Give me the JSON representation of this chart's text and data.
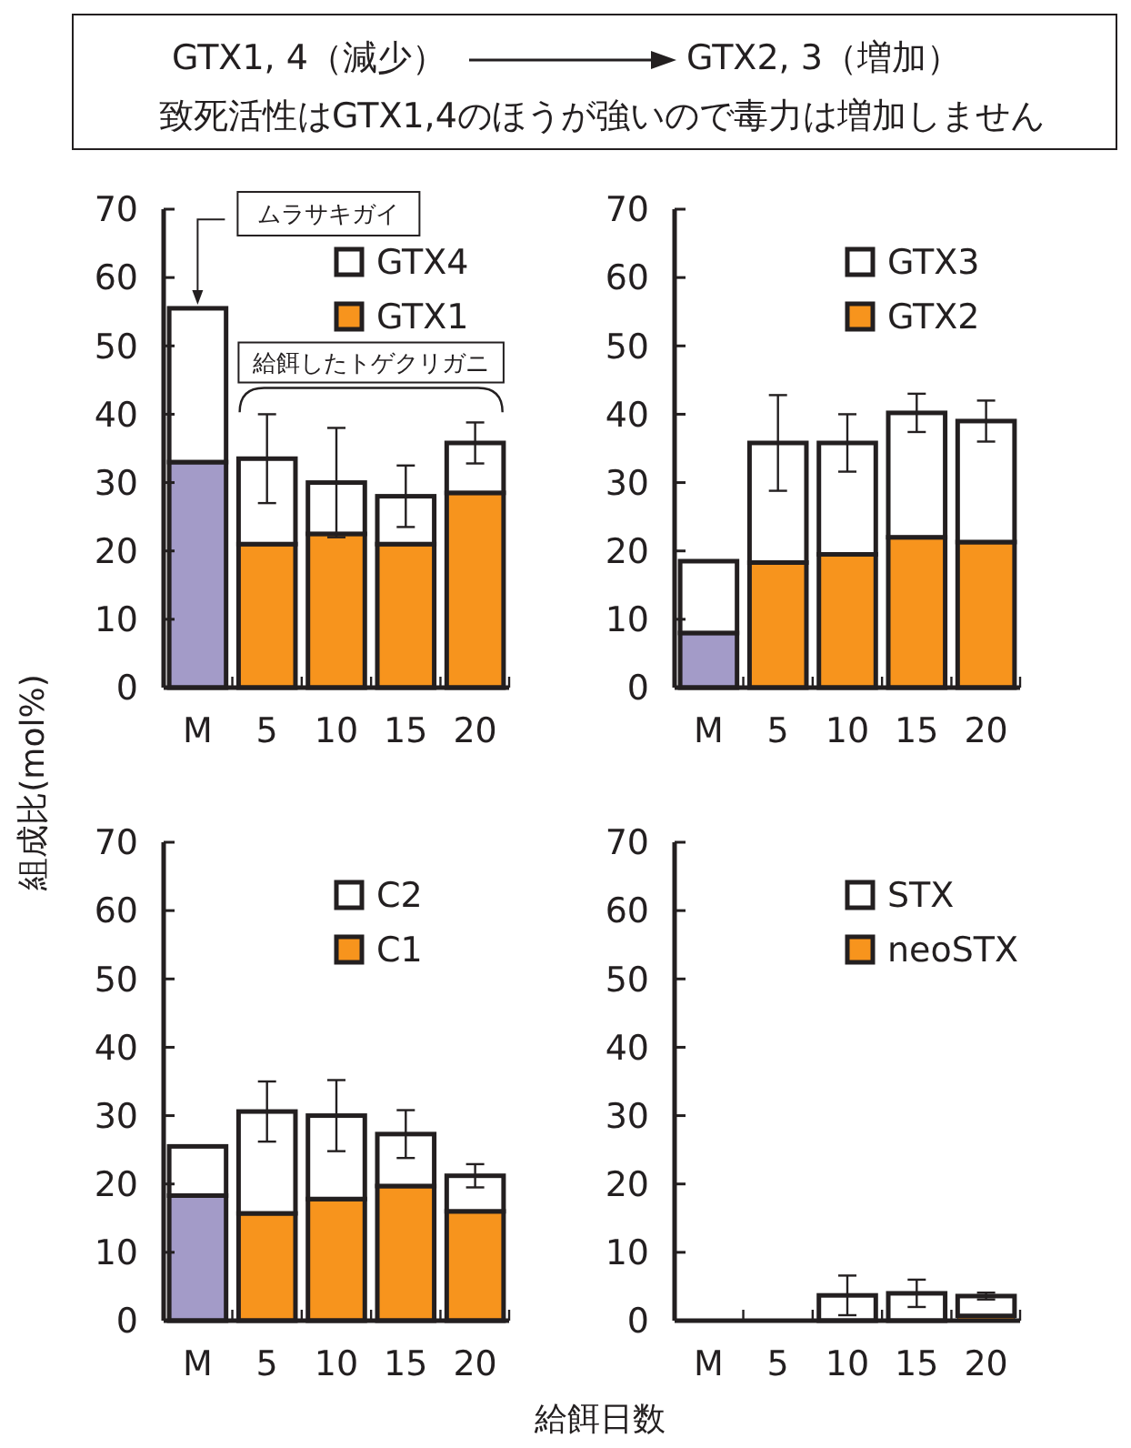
{
  "chart_data": [
    {
      "type": "bar",
      "stacked": true,
      "title": "致死活性はGTX1,4のほうが強いので毒力は増加しません",
      "ylabel": "組成比(mol%)",
      "annotations": [
        "GTX1, 4（減少）",
        "GTX2, 3（増加）",
        "給餌したトゲクリガニ",
        "ムラサキガイ"
      ],
      "categories": [
        "M",
        "5",
        "10",
        "15",
        "20"
      ],
      "ylim": [
        0,
        70
      ],
      "yticks": [
        0,
        10,
        20,
        30,
        40,
        50,
        60,
        70
      ],
      "legend": "top right",
      "series": [
        {
          "name": "GTX1",
          "color": "#f7941d",
          "colors": [
            "#a39bc8",
            "#f7941d",
            "#f7941d",
            "#f7941d",
            "#f7941d"
          ],
          "values": [
            33,
            21,
            22.5,
            21,
            28.5
          ]
        },
        {
          "name": "GTX4",
          "color": "#ffffff",
          "values": [
            22.5,
            12.5,
            7.5,
            7,
            7.3
          ],
          "errors": [
            null,
            6.5,
            8,
            4.5,
            3
          ]
        }
      ]
    },
    {
      "type": "bar",
      "stacked": true,
      "categories": [
        "M",
        "5",
        "10",
        "15",
        "20"
      ],
      "ylim": [
        0,
        70
      ],
      "yticks": [
        0,
        10,
        20,
        30,
        40,
        50,
        60,
        70
      ],
      "legend": "top right",
      "series": [
        {
          "name": "GTX2",
          "color": "#f7941d",
          "colors": [
            "#a39bc8",
            "#f7941d",
            "#f7941d",
            "#f7941d",
            "#f7941d"
          ],
          "values": [
            8,
            18.3,
            19.5,
            22,
            21.3
          ]
        },
        {
          "name": "GTX3",
          "color": "#ffffff",
          "values": [
            10.5,
            17.5,
            16.3,
            18.2,
            17.7
          ],
          "errors": [
            null,
            7,
            4.2,
            2.8,
            3
          ]
        }
      ]
    },
    {
      "type": "bar",
      "stacked": true,
      "xlabel": "給餌日数",
      "categories": [
        "M",
        "5",
        "10",
        "15",
        "20"
      ],
      "ylim": [
        0,
        70
      ],
      "yticks": [
        0,
        10,
        20,
        30,
        40,
        50,
        60,
        70
      ],
      "legend": "top right",
      "series": [
        {
          "name": "C1",
          "color": "#f7941d",
          "colors": [
            "#a39bc8",
            "#f7941d",
            "#f7941d",
            "#f7941d",
            "#f7941d"
          ],
          "values": [
            18.3,
            15.7,
            17.8,
            19.7,
            16
          ]
        },
        {
          "name": "C2",
          "color": "#ffffff",
          "values": [
            7.2,
            14.9,
            12.2,
            7.6,
            5.2
          ],
          "errors": [
            null,
            4.4,
            5.2,
            3.5,
            1.7
          ]
        }
      ]
    },
    {
      "type": "bar",
      "stacked": true,
      "categories": [
        "M",
        "5",
        "10",
        "15",
        "20"
      ],
      "ylim": [
        0,
        70
      ],
      "yticks": [
        0,
        10,
        20,
        30,
        40,
        50,
        60,
        70
      ],
      "legend": "top right",
      "series": [
        {
          "name": "neoSTX",
          "color": "#f7941d",
          "values": [
            0,
            0,
            0,
            0,
            0.7
          ]
        },
        {
          "name": "STX",
          "color": "#ffffff",
          "values": [
            0,
            0,
            3.7,
            4,
            2.9
          ],
          "errors": [
            null,
            null,
            2.9,
            2,
            0.5
          ]
        }
      ]
    }
  ]
}
